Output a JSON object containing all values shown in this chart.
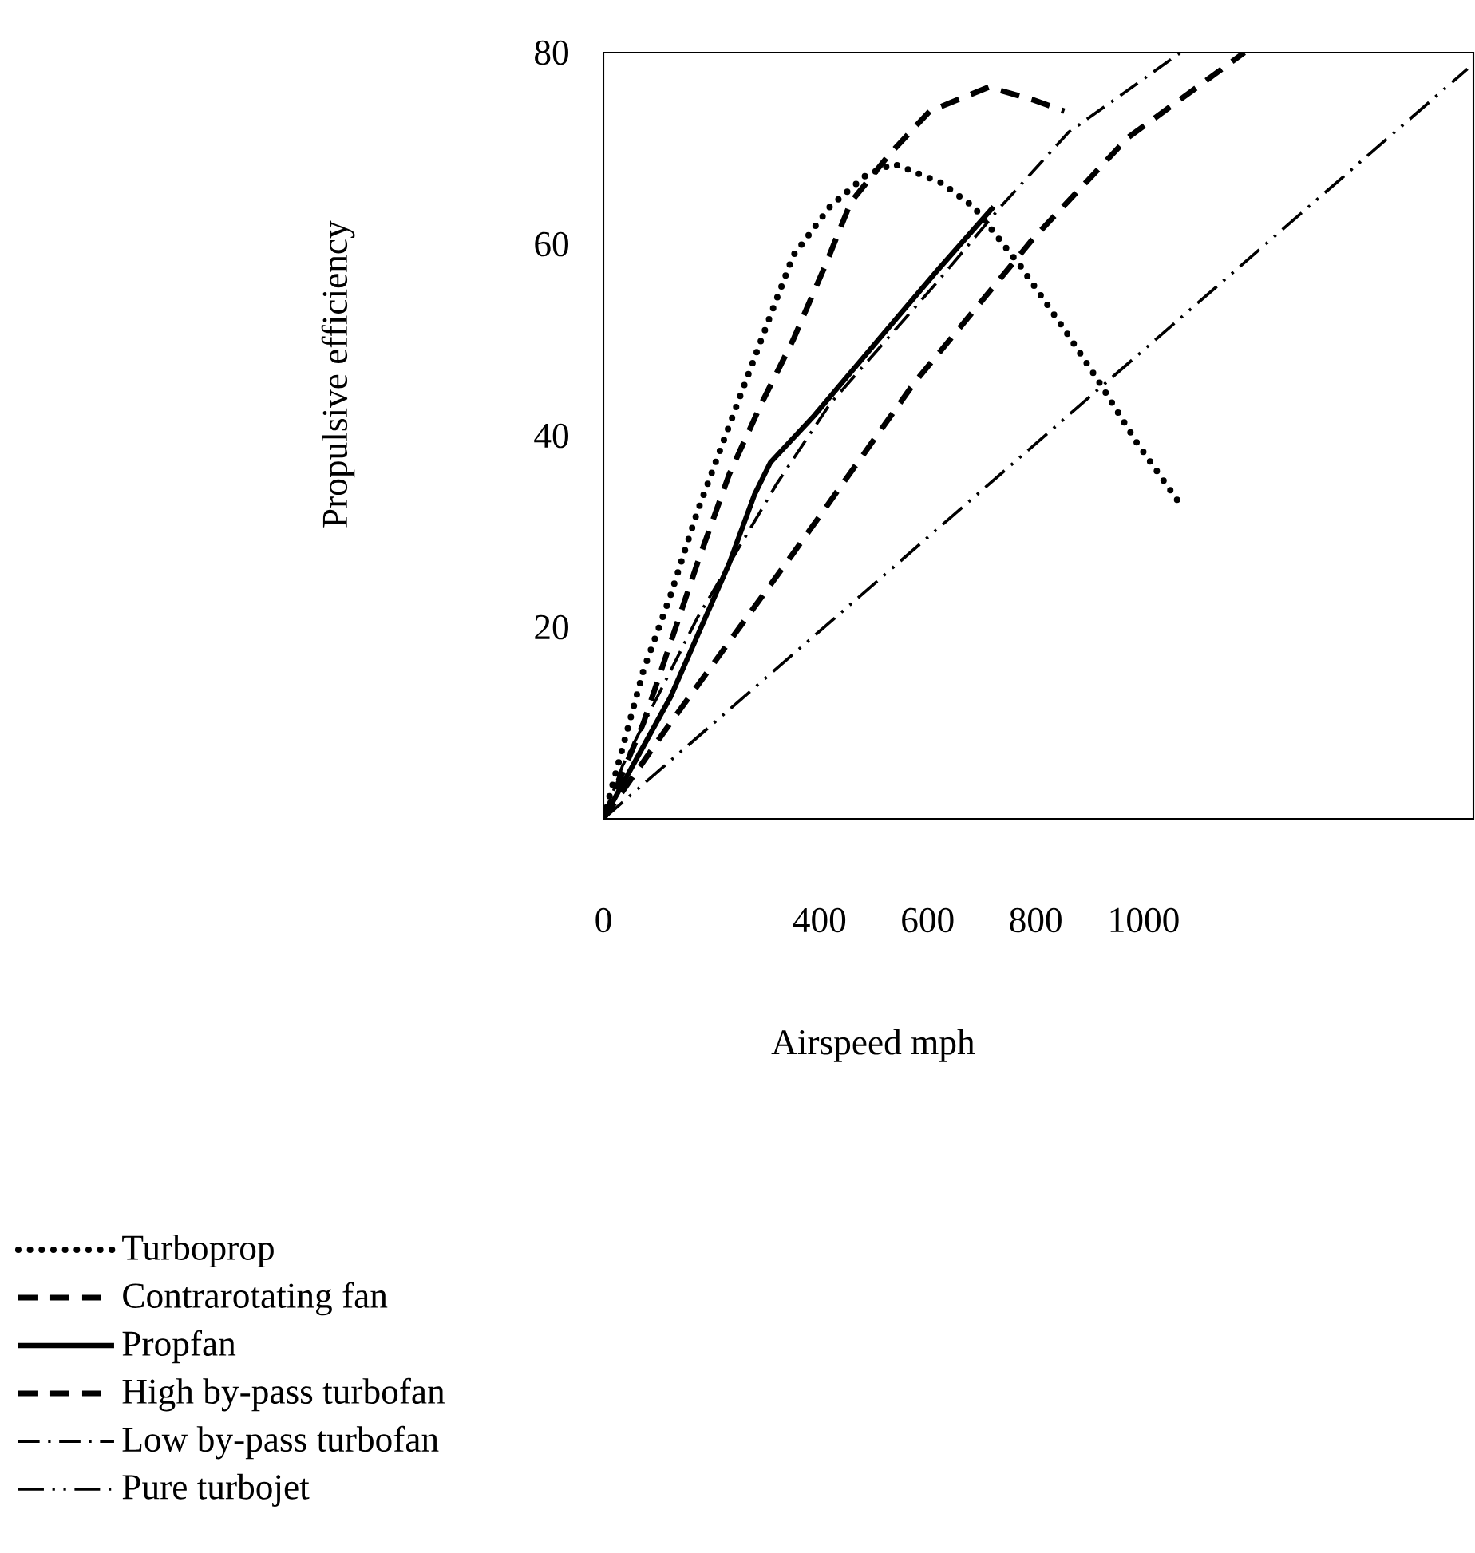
{
  "chart_data": {
    "type": "line",
    "xlabel": "Airspeed mph",
    "ylabel": "Propulsive efficiency",
    "xlim": [
      0,
      1610
    ],
    "ylim": [
      0,
      80
    ],
    "xticks": [
      0,
      400,
      600,
      800,
      1000
    ],
    "yticks": [
      20,
      40,
      60,
      80
    ],
    "grid": false,
    "legend": "bottom left",
    "marker": "none",
    "series": [
      {
        "name": "Turboprop",
        "color": "#000000",
        "line_style": "dotted",
        "x": [
          0,
          74,
          124,
          174,
          233,
          292,
          351,
          419,
          486,
          537,
          626,
          685,
          772,
          853,
          914,
          988,
          1073
        ],
        "values": [
          0,
          15.5,
          23.3,
          32.1,
          41.1,
          50,
          58.8,
          63.9,
          67.2,
          68.4,
          66.4,
          63.9,
          57.7,
          51.1,
          45.9,
          39.2,
          32.4
        ]
      },
      {
        "name": "Contrarotating fan",
        "color": "#000000",
        "line_style": "dashed",
        "x": [
          0,
          74,
          174,
          233,
          292,
          351,
          410,
          458,
          528,
          604,
          713,
          794,
          853
        ],
        "values": [
          0,
          10,
          26.7,
          36,
          43.3,
          50,
          57.7,
          64.4,
          69.3,
          73.9,
          76.4,
          75.1,
          73.9
        ]
      },
      {
        "name": "Propfan",
        "color": "#000000",
        "line_style": "solid",
        "x": [
          0,
          124,
          233,
          280,
          309,
          390,
          516,
          617,
          722
        ],
        "values": [
          0,
          12.7,
          26.7,
          33.9,
          37.2,
          42.1,
          50.5,
          57.2,
          63.9
        ]
      },
      {
        "name": "High by-pass turbofan",
        "color": "#000000",
        "line_style": "dashed",
        "x": [
          0,
          115,
          351,
          575,
          794,
          970,
          1186
        ],
        "values": [
          0,
          9.3,
          27.7,
          45.5,
          60.5,
          71.1,
          80
        ]
      },
      {
        "name": "Low by-pass turbofan",
        "color": "#000000",
        "line_style": "dashdot",
        "x": [
          0,
          35,
          174,
          321,
          419,
          617,
          735,
          861,
          1068
        ],
        "values": [
          0,
          5.5,
          21,
          35,
          43.3,
          56,
          63.9,
          71.7,
          80
        ]
      },
      {
        "name": "Pure turbojet",
        "color": "#000000",
        "line_style": "dashdotdot",
        "x": [
          0,
          1599
        ],
        "values": [
          0,
          78.3
        ]
      }
    ]
  }
}
